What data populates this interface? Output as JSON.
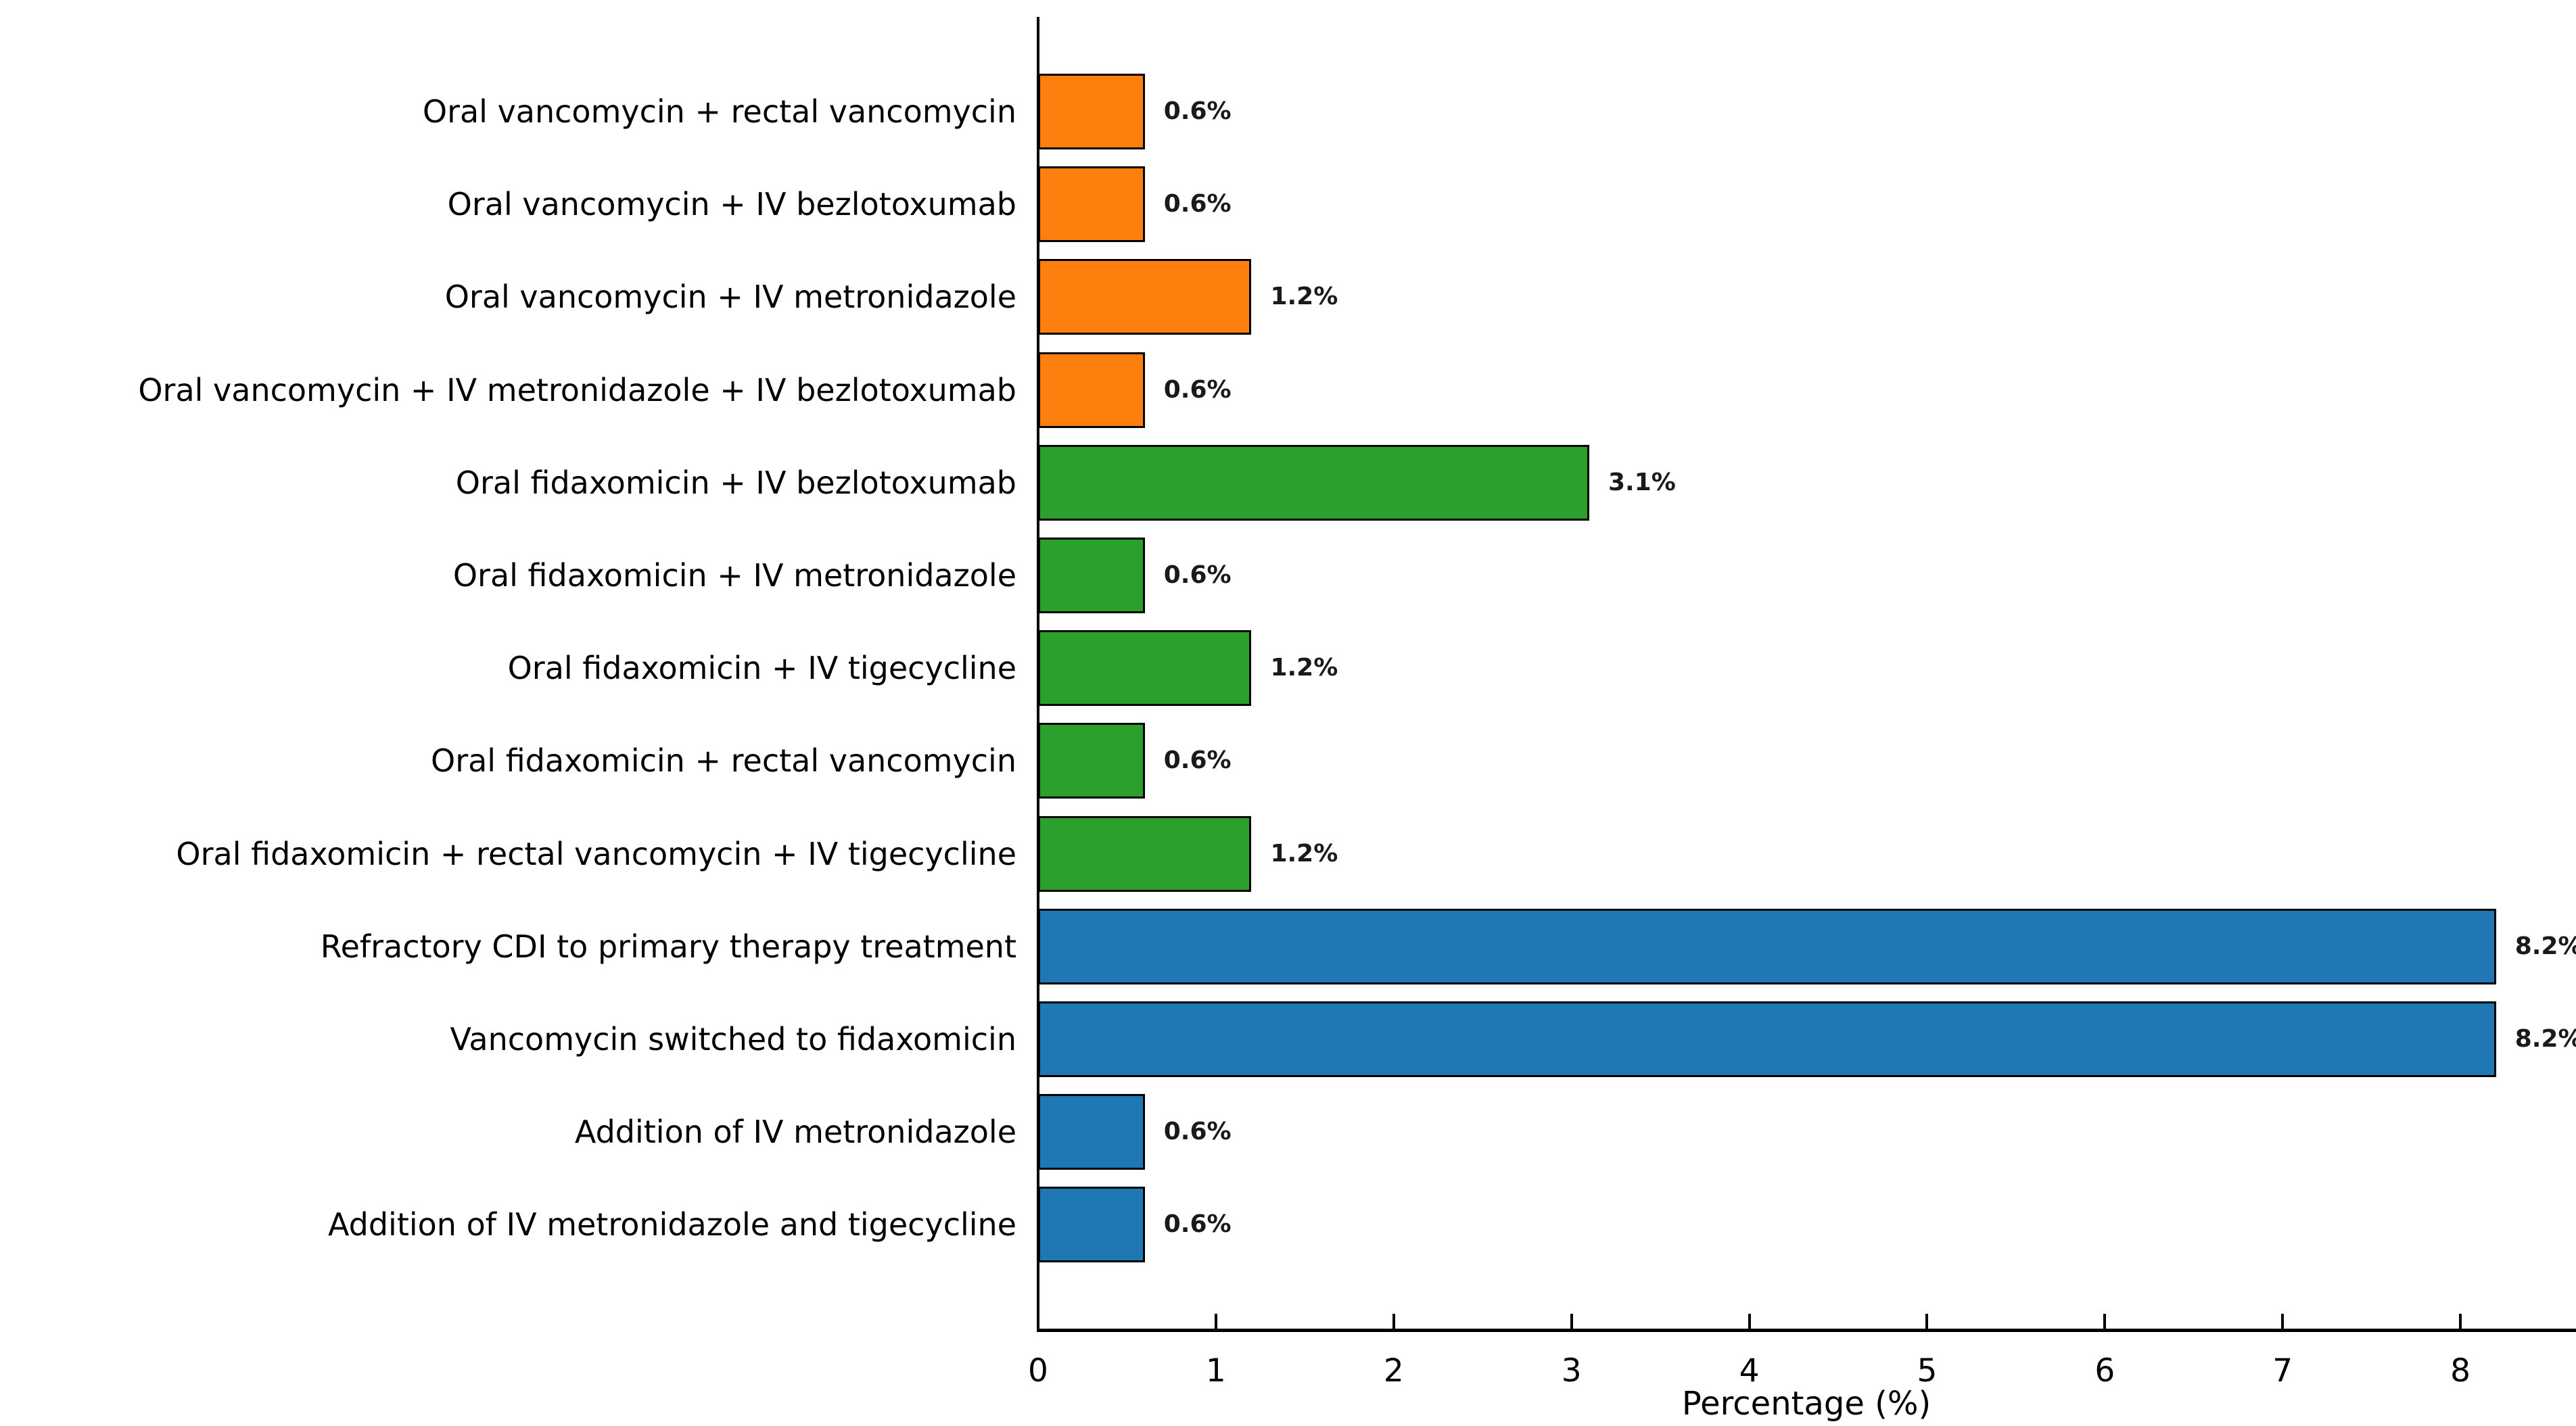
{
  "chart_data": {
    "type": "bar",
    "orientation": "horizontal",
    "title": "",
    "xlabel": "Percentage (%)",
    "ylabel": "",
    "xlim": [
      0,
      8.65
    ],
    "x_ticks": [
      0,
      1,
      2,
      3,
      4,
      5,
      6,
      7,
      8
    ],
    "grid": false,
    "legend": null,
    "categories": [
      "Oral vancomycin + rectal vancomycin",
      "Oral vancomycin + IV bezlotoxumab",
      "Oral vancomycin + IV metronidazole",
      "Oral vancomycin + IV metronidazole + IV bezlotoxumab",
      "Oral fidaxomicin + IV bezlotoxumab",
      "Oral fidaxomicin + IV metronidazole",
      "Oral fidaxomicin + IV tigecycline",
      "Oral fidaxomicin + rectal vancomycin",
      "Oral fidaxomicin + rectal vancomycin + IV tigecycline",
      "Refractory CDI to primary therapy treatment",
      "Vancomycin switched to fidaxomicin",
      "Addition of IV metronidazole",
      "Addition of IV metronidazole and tigecycline"
    ],
    "values": [
      0.6,
      0.6,
      1.2,
      0.6,
      3.1,
      0.6,
      1.2,
      0.6,
      1.2,
      8.2,
      8.2,
      0.6,
      0.6
    ],
    "value_labels": [
      "0.6%",
      "0.6%",
      "1.2%",
      "0.6%",
      "3.1%",
      "0.6%",
      "1.2%",
      "0.6%",
      "1.2%",
      "8.2%",
      "8.2%",
      "0.6%",
      "0.6%"
    ],
    "bar_colors": [
      "#ff7f0e",
      "#ff7f0e",
      "#ff7f0e",
      "#ff7f0e",
      "#2ca02c",
      "#2ca02c",
      "#2ca02c",
      "#2ca02c",
      "#2ca02c",
      "#1f77b4",
      "#1f77b4",
      "#1f77b4",
      "#1f77b4"
    ],
    "bar_edge_color": "#000000",
    "colors": {
      "orange": "#ff7f0e",
      "green": "#2ca02c",
      "blue": "#1f77b4",
      "axis": "#000000",
      "value_label_text": "#1a1a1a"
    }
  }
}
